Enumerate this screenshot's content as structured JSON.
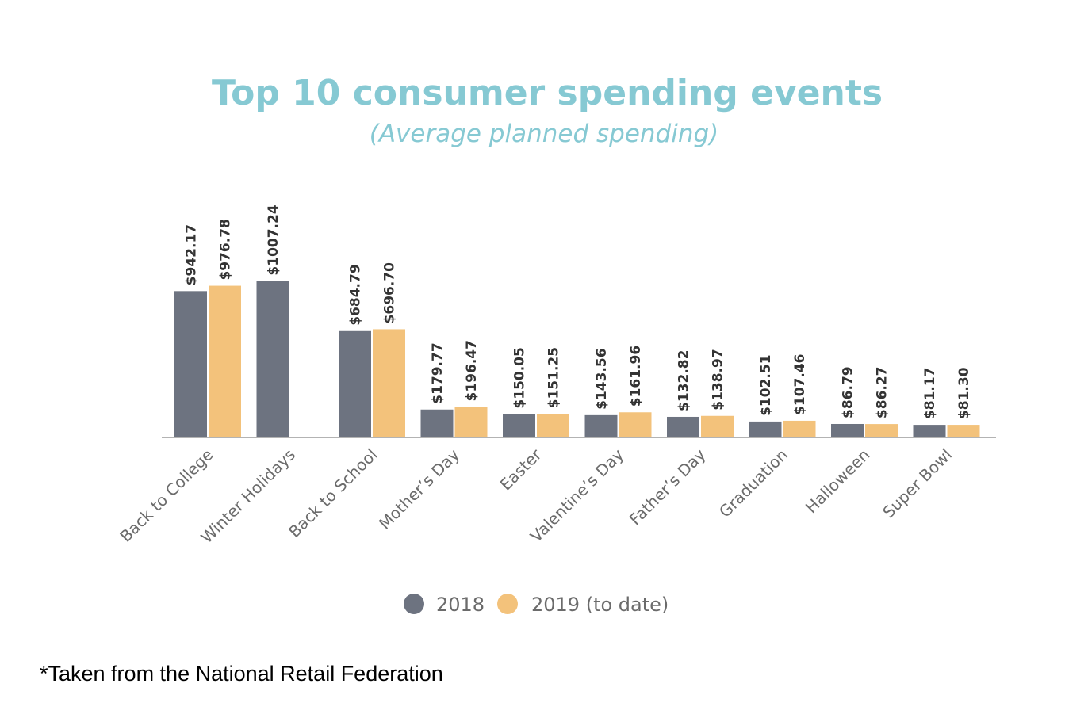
{
  "chart_data": {
    "type": "bar",
    "title": "Top 10 consumer spending events",
    "subtitle": "(Average planned spending)",
    "categories": [
      "Back to College",
      "Winter Holidays",
      "Back to School",
      "Mother’s Day",
      "Easter",
      "Valentine’s Day",
      "Father’s Day",
      "Graduation",
      "Halloween",
      "Super Bowl"
    ],
    "series": [
      {
        "name": "2018",
        "color": "#6d7380",
        "values": [
          942.17,
          1007.24,
          684.79,
          179.77,
          150.05,
          143.56,
          132.82,
          102.51,
          86.79,
          81.17
        ],
        "labels": [
          "$942.17",
          "$1007.24",
          "$684.79",
          "$179.77",
          "$150.05",
          "$143.56",
          "$132.82",
          "$102.51",
          "$86.79",
          "$81.17"
        ]
      },
      {
        "name": "2019 (to date)",
        "color": "#f3c27b",
        "values": [
          976.78,
          null,
          696.7,
          196.47,
          151.25,
          161.96,
          138.97,
          107.46,
          86.27,
          81.3
        ],
        "labels": [
          "$976.78",
          "",
          "$696.70",
          "$196.47",
          "$151.25",
          "$161.96",
          "$138.97",
          "$107.46",
          "$86.27",
          "$81.30"
        ]
      }
    ],
    "ylim": [
      0,
      1100
    ],
    "grid": false,
    "legend_position": "bottom-center"
  },
  "footnote": "*Taken from the National Retail Federation"
}
